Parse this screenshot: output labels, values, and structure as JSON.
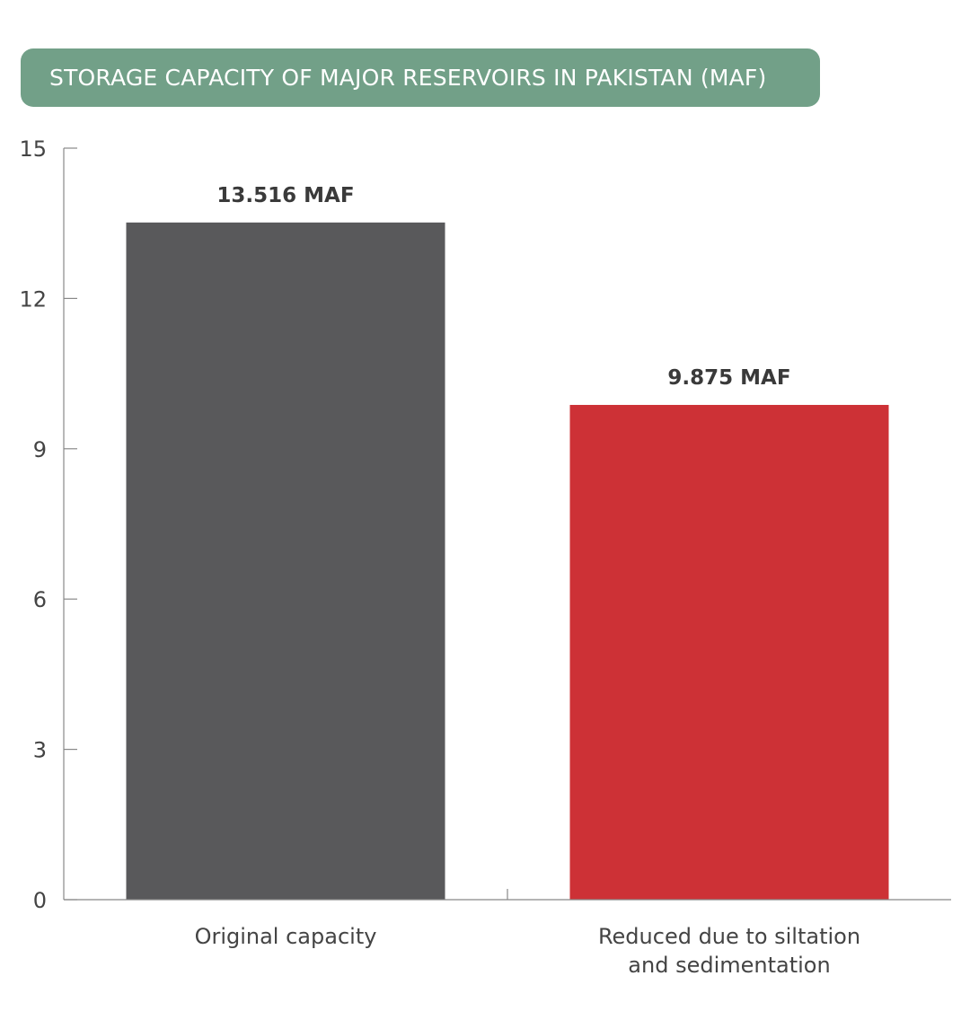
{
  "chart_data": {
    "type": "bar",
    "title": "STORAGE CAPACITY OF MAJOR RESERVOIRS IN PAKISTAN (MAF)",
    "categories": [
      [
        "Original capacity"
      ],
      [
        "Reduced due to siltation",
        "and sedimentation"
      ]
    ],
    "values": [
      13.516,
      9.875
    ],
    "data_labels": [
      "13.516 MAF",
      "9.875 MAF"
    ],
    "colors": [
      "#59595b",
      "#cd3136"
    ],
    "ylim": [
      0,
      15
    ],
    "yticks": [
      0,
      3,
      6,
      9,
      12,
      15
    ],
    "title_bg": "#72a088"
  }
}
